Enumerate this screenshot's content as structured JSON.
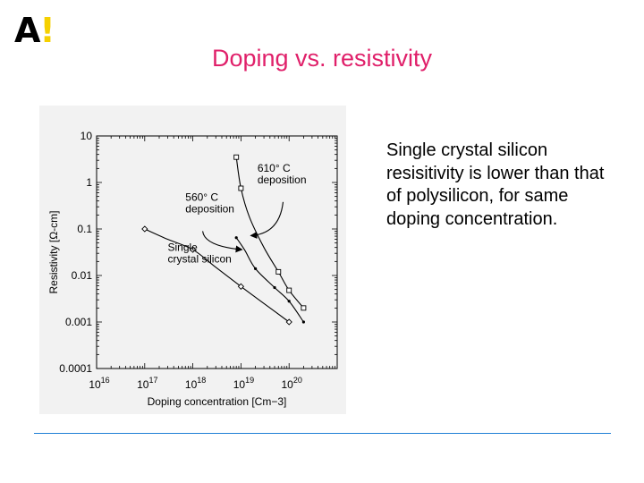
{
  "slide": {
    "logo_letter": "A",
    "logo_mark": "!",
    "logo_accent": "#f5d000",
    "title": "Doping vs. resistivity",
    "title_color": "#e0206a",
    "body": "Single crystal silicon resisitivity is lower than that of polysilicon, for same doping concentration.",
    "divider_color": "#1f7fd6"
  },
  "chart_data": {
    "type": "line",
    "xlabel": "Doping concentration [Cm−3]",
    "ylabel": "Resistivity [Ω-cm]",
    "x_scale": "log",
    "y_scale": "log",
    "xlim": [
      1e+16,
      1e+21
    ],
    "ylim": [
      0.0001,
      10
    ],
    "x_ticks": [
      {
        "value": 1e+16,
        "base": "10",
        "exp": "16"
      },
      {
        "value": 1e+17,
        "base": "10",
        "exp": "17"
      },
      {
        "value": 1e+18,
        "base": "10",
        "exp": "18"
      },
      {
        "value": 1e+19,
        "base": "10",
        "exp": "19"
      },
      {
        "value": 1e+20,
        "base": "10",
        "exp": "20"
      }
    ],
    "y_ticks": [
      {
        "value": 10,
        "label": "10"
      },
      {
        "value": 1,
        "label": "1"
      },
      {
        "value": 0.1,
        "label": "0.1"
      },
      {
        "value": 0.01,
        "label": "0.01"
      },
      {
        "value": 0.001,
        "label": "0.001"
      },
      {
        "value": 0.0001,
        "label": "0.0001"
      }
    ],
    "grid": false,
    "series": [
      {
        "marker": "diamond",
        "curve_x": [
          1e+17,
          3e+17,
          1e+18,
          3e+18,
          1e+19,
          3e+19,
          1e+20
        ],
        "curve_y": [
          0.1,
          0.06,
          0.036,
          0.015,
          0.0058,
          0.0025,
          0.001
        ],
        "marker_x": [
          1e+17,
          1e+18,
          1e+19,
          1e+20
        ],
        "marker_y": [
          0.1,
          0.036,
          0.0058,
          0.001
        ]
      },
      {
        "marker": "dot",
        "curve_x": [
          8e+18,
          1.2e+19,
          2e+19,
          5e+19,
          1e+20,
          2e+20
        ],
        "curve_y": [
          0.065,
          0.035,
          0.014,
          0.0055,
          0.0028,
          0.001
        ],
        "marker_x": [
          8e+18,
          2e+19,
          5e+19,
          1e+20,
          2e+20
        ],
        "marker_y": [
          0.065,
          0.014,
          0.0055,
          0.0028,
          0.001
        ]
      },
      {
        "marker": "square",
        "curve_x": [
          8e+18,
          1e+19,
          1.5e+19,
          3e+19,
          6e+19,
          1e+20,
          2e+20
        ],
        "curve_y": [
          3.5,
          0.75,
          0.18,
          0.04,
          0.012,
          0.0048,
          0.002
        ],
        "marker_x": [
          8e+18,
          1e+19,
          6e+19,
          1e+20,
          2e+20
        ],
        "marker_y": [
          3.5,
          0.75,
          0.012,
          0.0048,
          0.002
        ]
      }
    ],
    "annotations": [
      {
        "lines": [
          "610° C",
          "deposition"
        ],
        "x": 2.2e+19,
        "y": 1.7
      },
      {
        "lines": [
          "560° C",
          "deposition"
        ],
        "x": 7e+17,
        "y": 0.4
      },
      {
        "lines": [
          "Single",
          "crystal silicon"
        ],
        "x": 3e+17,
        "y": 0.034
      }
    ],
    "arrows": [
      {
        "from": [
          7.5e+19,
          0.38
        ],
        "to": [
          1.6e+19,
          0.072
        ]
      },
      {
        "from": [
          1.6e+18,
          0.09
        ],
        "to": [
          1.05e+19,
          0.036
        ]
      }
    ]
  }
}
